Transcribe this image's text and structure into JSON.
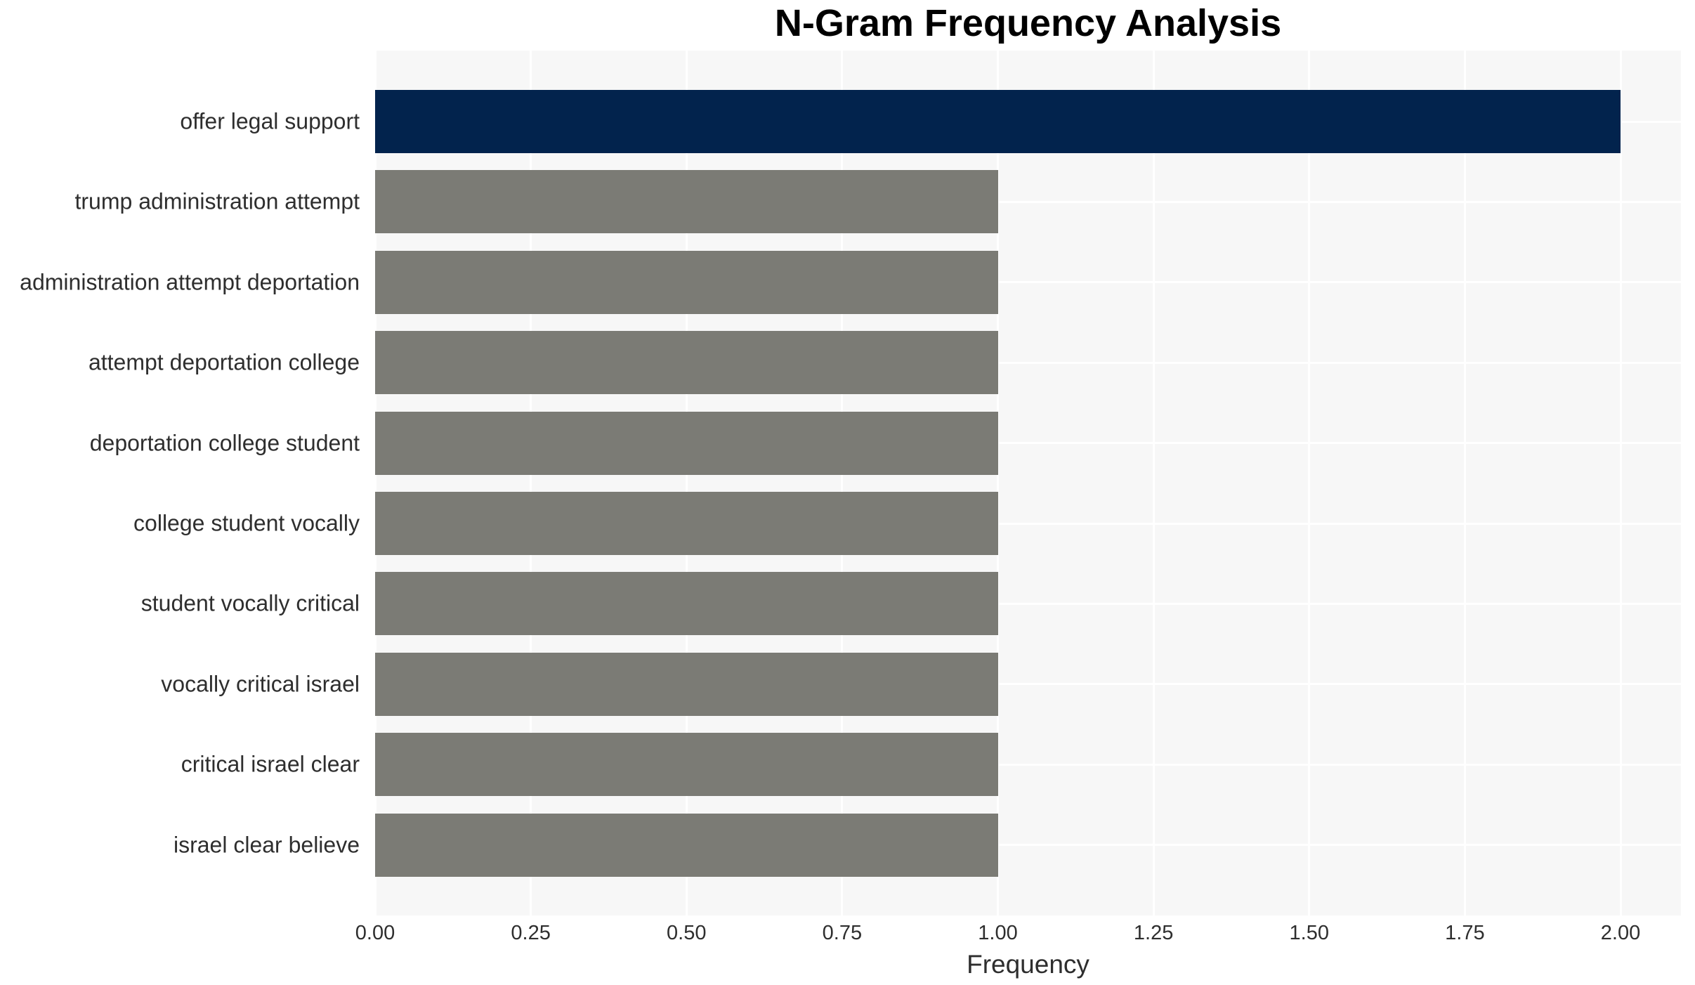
{
  "chart_data": {
    "type": "bar",
    "orientation": "horizontal",
    "title": "N-Gram Frequency Analysis",
    "xlabel": "Frequency",
    "ylabel": "",
    "categories": [
      "offer legal support",
      "trump administration attempt",
      "administration attempt deportation",
      "attempt deportation college",
      "deportation college student",
      "college student vocally",
      "student vocally critical",
      "vocally critical israel",
      "critical israel clear",
      "israel clear believe"
    ],
    "values": [
      2,
      1,
      1,
      1,
      1,
      1,
      1,
      1,
      1,
      1
    ],
    "bar_colors": [
      "#02234d",
      "#7b7b75",
      "#7b7b75",
      "#7b7b75",
      "#7b7b75",
      "#7b7b75",
      "#7b7b75",
      "#7b7b75",
      "#7b7b75",
      "#7b7b75"
    ],
    "xlim": [
      0,
      2.097
    ],
    "xticks": {
      "values": [
        0,
        0.25,
        0.5,
        0.75,
        1.0,
        1.25,
        1.5,
        1.75,
        2.0
      ],
      "labels": [
        "0.00",
        "0.25",
        "0.50",
        "0.75",
        "1.00",
        "1.25",
        "1.50",
        "1.75",
        "2.00"
      ]
    },
    "grid": true,
    "legend": false,
    "colors": {
      "plot_background": "#f7f7f7",
      "figure_background": "#ffffff",
      "gridline": "#ffffff",
      "highlight_bar": "#02234d",
      "base_bar": "#7b7b75",
      "text": "#2e2e2e",
      "title": "#000000"
    }
  }
}
